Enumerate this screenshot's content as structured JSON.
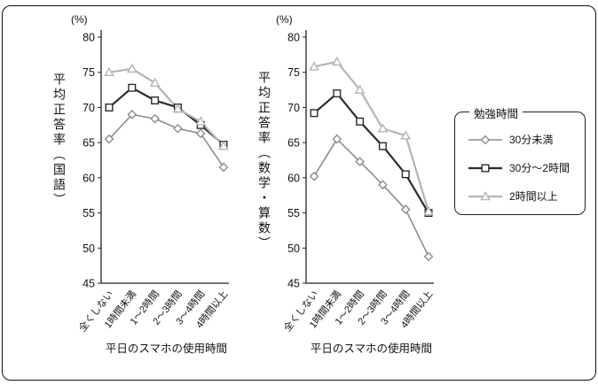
{
  "figure": {
    "percent_label": "(%)"
  },
  "legend": {
    "title": "勉強時間",
    "items": [
      {
        "label": "30分未満",
        "marker": "diamond",
        "color": "#8c8c8c",
        "line_width": 1.6
      },
      {
        "label": "30分〜2時間",
        "marker": "square",
        "color": "#2b2b2b",
        "line_width": 2.2
      },
      {
        "label": "2時間以上",
        "marker": "triangle",
        "color": "#b4b4b4",
        "line_width": 2.2
      }
    ]
  },
  "chart_data": [
    {
      "type": "line",
      "title": "",
      "ylabel": "平均正答率（国語）",
      "xlabel": "平日のスマホの使用時間",
      "categories": [
        "全くしない",
        "1時間未満",
        "1〜2時間",
        "2〜3時間",
        "3〜4時間",
        "4時間以上"
      ],
      "ylim": [
        45,
        80
      ],
      "ytick_step": 5,
      "legend_position": "right",
      "grid": false,
      "series": [
        {
          "name": "30分未満",
          "marker": "diamond",
          "color": "#8c8c8c",
          "line_width": 1.6,
          "values": [
            65.5,
            69.0,
            68.4,
            67.0,
            66.3,
            61.5
          ]
        },
        {
          "name": "30分〜2時間",
          "marker": "square",
          "color": "#2b2b2b",
          "line_width": 2.2,
          "values": [
            70.0,
            72.8,
            71.0,
            70.0,
            67.5,
            64.7
          ]
        },
        {
          "name": "2時間以上",
          "marker": "triangle",
          "color": "#b4b4b4",
          "line_width": 2.2,
          "values": [
            75.0,
            75.5,
            73.5,
            69.8,
            68.0,
            64.5
          ]
        }
      ]
    },
    {
      "type": "line",
      "title": "",
      "ylabel": "平均正答率（数学・算数）",
      "xlabel": "平日のスマホの使用時間",
      "categories": [
        "全くしない",
        "1時間未満",
        "1〜2時間",
        "2〜3時間",
        "3〜4時間",
        "4時間以上"
      ],
      "ylim": [
        45,
        80
      ],
      "ytick_step": 5,
      "legend_position": "right",
      "grid": false,
      "series": [
        {
          "name": "30分未満",
          "marker": "diamond",
          "color": "#8c8c8c",
          "line_width": 1.6,
          "values": [
            60.2,
            65.5,
            62.3,
            59.0,
            55.5,
            48.8
          ]
        },
        {
          "name": "30分〜2時間",
          "marker": "square",
          "color": "#2b2b2b",
          "line_width": 2.2,
          "values": [
            69.2,
            72.0,
            68.0,
            64.5,
            60.5,
            55.0
          ]
        },
        {
          "name": "2時間以上",
          "marker": "triangle",
          "color": "#b4b4b4",
          "line_width": 2.2,
          "values": [
            75.8,
            76.5,
            72.5,
            67.0,
            66.0,
            55.2
          ]
        }
      ]
    }
  ]
}
